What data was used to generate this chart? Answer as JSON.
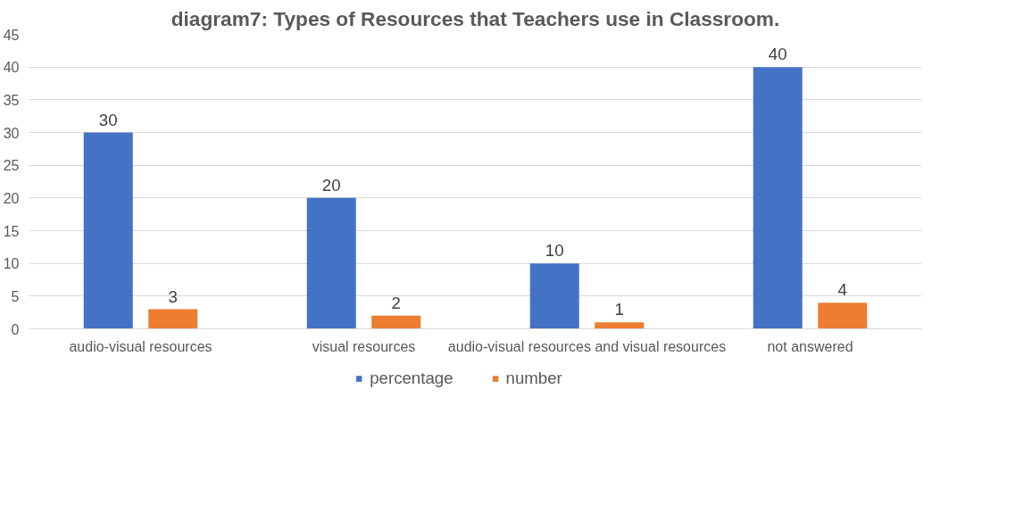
{
  "chart_data": {
    "type": "bar",
    "title": "diagram7: Types of Resources that Teachers use in Classroom.",
    "categories": [
      "audio-visual resources",
      "visual resources",
      "audio-visual resources and visual resources",
      "not answered"
    ],
    "series": [
      {
        "name": "percentage",
        "color": "#4472c4",
        "values": [
          30,
          20,
          10,
          40
        ]
      },
      {
        "name": "number",
        "color": "#ed7d31",
        "values": [
          3,
          2,
          1,
          4
        ]
      }
    ],
    "ylim": [
      0,
      45
    ],
    "yticks": [
      0,
      5,
      10,
      15,
      20,
      25,
      30,
      35,
      40,
      45
    ],
    "grid": "y",
    "legend": "bottom",
    "data_labels": true
  }
}
